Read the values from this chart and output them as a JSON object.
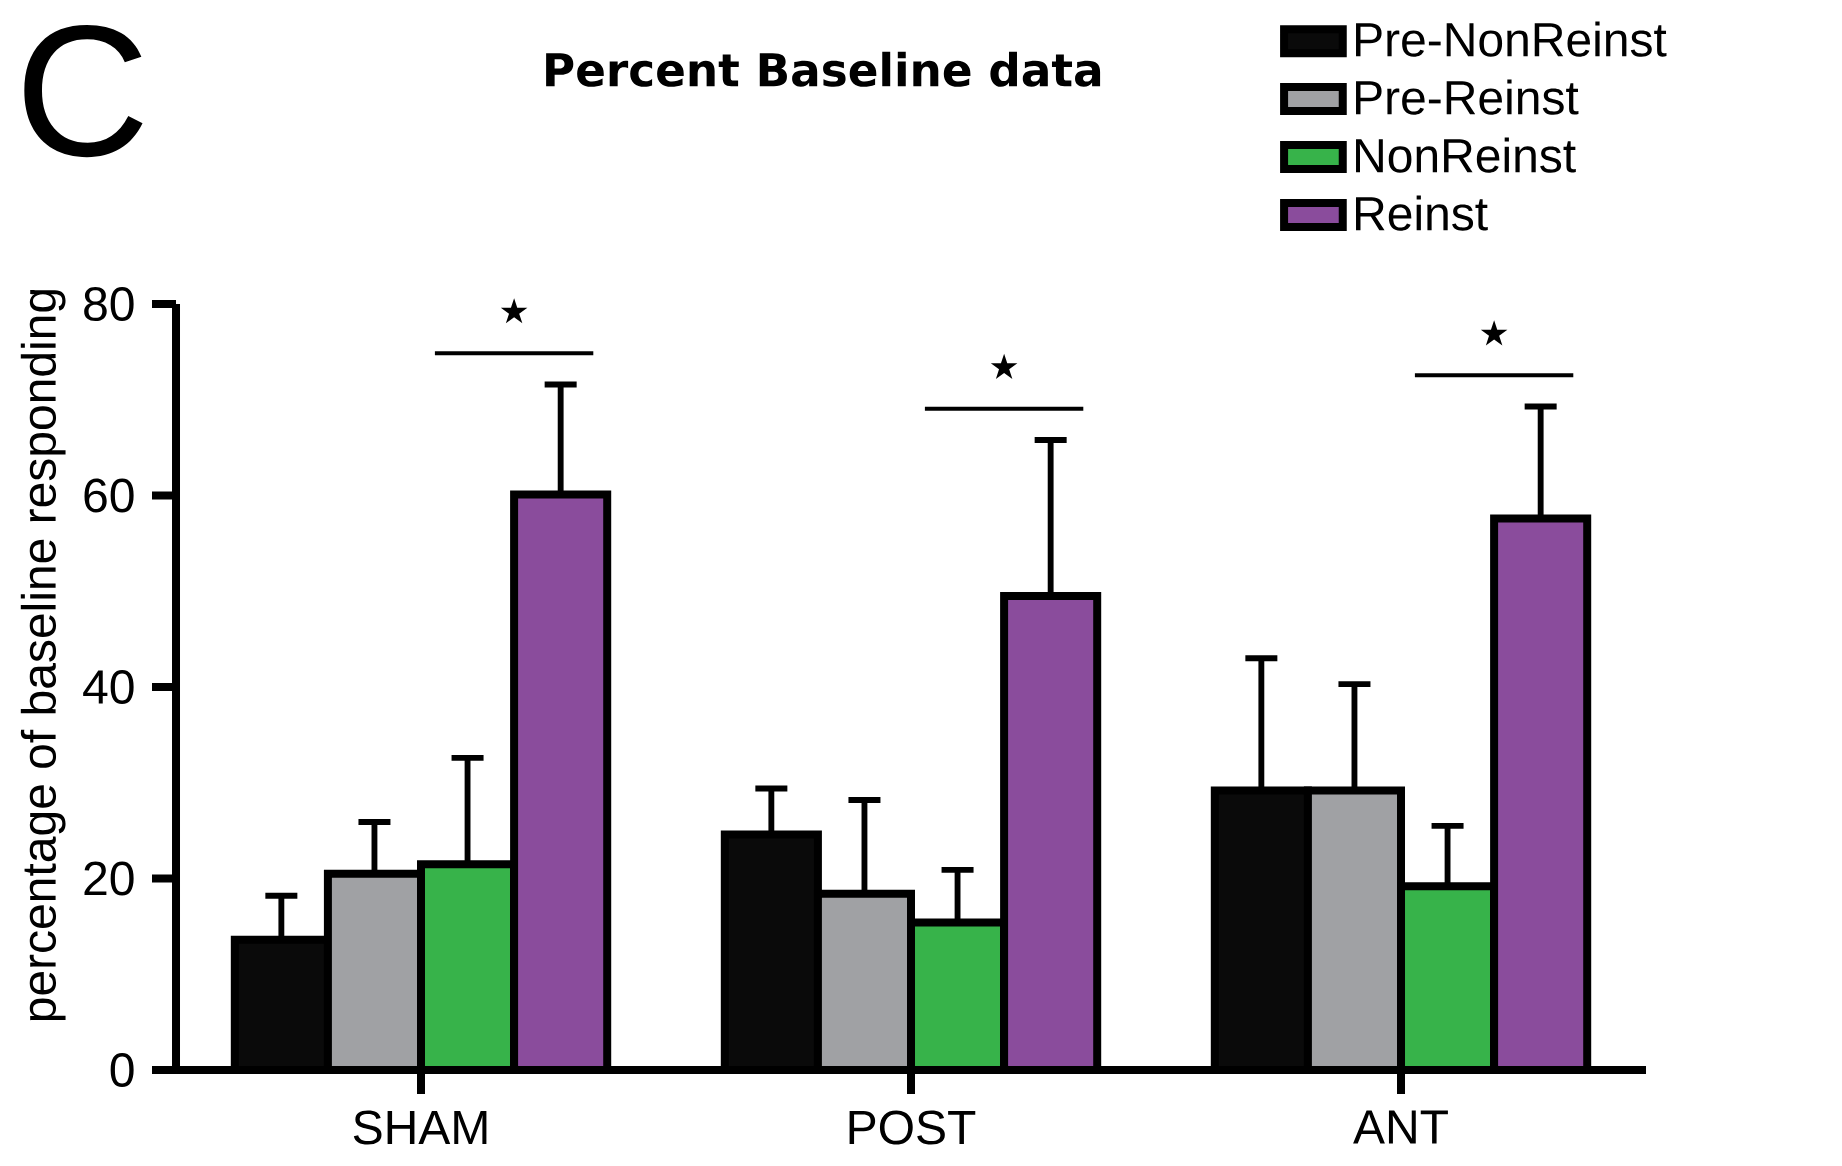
{
  "chart_data": {
    "type": "bar",
    "title": "Percent Baseline data",
    "ylabel": "percentage of baseline responding",
    "categories": [
      "SHAM",
      "POST",
      "ANT"
    ],
    "series": [
      {
        "name": "Pre-NonReinst",
        "color": "#0a0a0a",
        "values": [
          13.6,
          24.6,
          29.2
        ],
        "errors": [
          [
            13.6,
            18.2
          ],
          [
            24.6,
            29.4
          ],
          [
            29.2,
            43.0
          ]
        ]
      },
      {
        "name": "Pre-Reinst",
        "color": "#a0a1a4",
        "values": [
          20.5,
          18.4,
          29.2
        ],
        "errors": [
          [
            20.5,
            25.9
          ],
          [
            18.4,
            28.2
          ],
          [
            29.2,
            40.3
          ]
        ]
      },
      {
        "name": "NonReinst",
        "color": "#37b34a",
        "values": [
          21.5,
          15.4,
          19.2
        ],
        "errors": [
          [
            21.5,
            32.6
          ],
          [
            15.4,
            20.9
          ],
          [
            19.2,
            25.5
          ]
        ]
      },
      {
        "name": "Reinst",
        "color": "#8a4c9c",
        "values": [
          60.1,
          49.5,
          57.6
        ],
        "errors": [
          [
            60.1,
            71.6
          ],
          [
            49.5,
            65.8
          ],
          [
            57.6,
            69.3
          ]
        ]
      }
    ],
    "ylim": [
      0,
      80
    ],
    "yticks": [
      0,
      20,
      40,
      60,
      80
    ],
    "grid": false,
    "legend": "top right",
    "annotations": [
      "C",
      "★",
      "★",
      "★"
    ]
  }
}
